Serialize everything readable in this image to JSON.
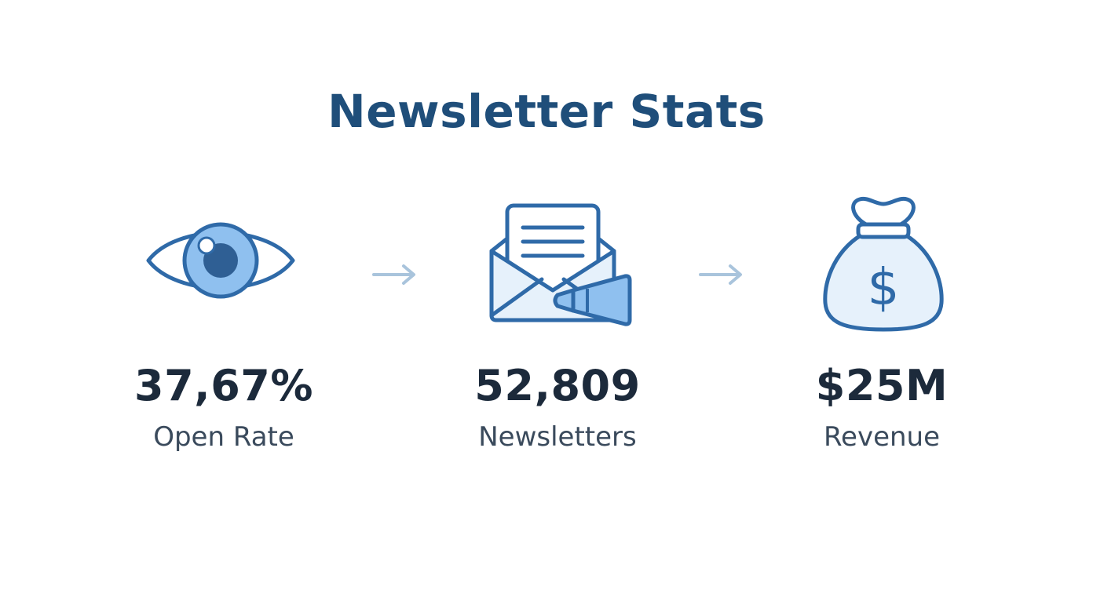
{
  "title": "Newsletter Stats",
  "colors": {
    "title": "#1f4e7a",
    "icon_stroke": "#2f6aa8",
    "icon_fill_light": "#e6f1fb",
    "icon_fill_mid": "#8fc0ef",
    "value_text": "#1c2a3b",
    "label_text": "#3a4a5c",
    "arrow": "#a9c4dc"
  },
  "stats": [
    {
      "icon": "eye-icon",
      "value": "37,67%",
      "label": "Open Rate"
    },
    {
      "icon": "envelope-megaphone-icon",
      "value": "52,809",
      "label": "Newsletters"
    },
    {
      "icon": "money-bag-icon",
      "value": "$25M",
      "label": "Revenue"
    }
  ]
}
